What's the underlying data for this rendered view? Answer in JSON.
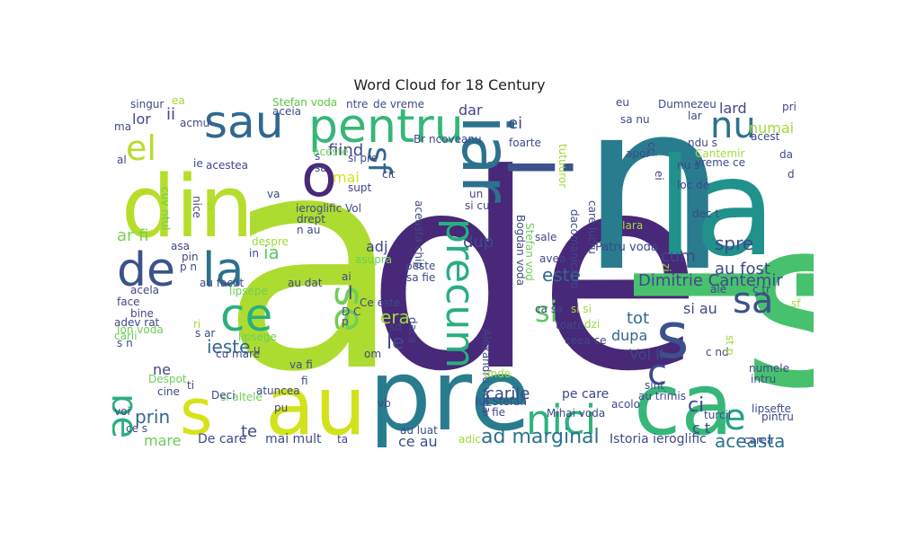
{
  "chart_data": {
    "type": "word_cloud",
    "title": "Word Cloud for 18 Century",
    "palette": [
      "#440154",
      "#46307e",
      "#355f8d",
      "#277f8e",
      "#21918c",
      "#2fb47c",
      "#5ec962",
      "#addc30",
      "#fde725"
    ],
    "words": [
      {
        "text": "de",
        "weight": 1.0,
        "color": "#482878"
      },
      {
        "text": "a",
        "weight": 0.92,
        "color": "#addc30"
      },
      {
        "text": "s",
        "weight": 0.78,
        "color": "#48c16e"
      },
      {
        "text": "i",
        "weight": 0.75,
        "color": "#48c16e"
      },
      {
        "text": "n",
        "weight": 0.7,
        "color": "#287c8e"
      },
      {
        "text": "la",
        "weight": 0.55,
        "color": "#21918c"
      },
      {
        "text": "pre",
        "weight": 0.4,
        "color": "#287c8e"
      },
      {
        "text": "au",
        "weight": 0.35,
        "color": "#d2e21b"
      },
      {
        "text": "ca",
        "weight": 0.35,
        "color": "#35b779"
      },
      {
        "text": "din",
        "weight": 0.3,
        "color": "#b5de2b"
      },
      {
        "text": "s",
        "weight": 0.32,
        "color": "#d8e219"
      },
      {
        "text": "s",
        "weight": 0.2,
        "color": "#3b528b"
      },
      {
        "text": "i",
        "weight": 0.25,
        "color": "#3b528b"
      },
      {
        "text": "pentru",
        "weight": 0.22,
        "color": "#35b779"
      },
      {
        "text": "sau",
        "weight": 0.21,
        "color": "#31688e"
      },
      {
        "text": "iar",
        "weight": 0.22,
        "color": "#2c728e"
      },
      {
        "text": "precum",
        "weight": 0.18,
        "color": "#29af7f"
      },
      {
        "text": "la",
        "weight": 0.2,
        "color": "#2c728e"
      },
      {
        "text": "de",
        "weight": 0.19,
        "color": "#3b528b"
      },
      {
        "text": "o",
        "weight": 0.22,
        "color": "#482878"
      },
      {
        "text": "ce",
        "weight": 0.18,
        "color": "#29af7f"
      },
      {
        "text": "sa",
        "weight": 0.16,
        "color": "#3b528b"
      },
      {
        "text": "nici",
        "weight": 0.16,
        "color": "#2fb47c"
      },
      {
        "text": "e",
        "weight": 0.15,
        "color": "#20a386"
      },
      {
        "text": "nu",
        "weight": 0.14,
        "color": "#2c728e"
      },
      {
        "text": "el",
        "weight": 0.13,
        "color": "#b5de2b"
      },
      {
        "text": "pe",
        "weight": 0.12,
        "color": "#29af7f"
      },
      {
        "text": "c",
        "weight": 0.12,
        "color": "#3e4989"
      },
      {
        "text": "se",
        "weight": 0.13,
        "color": "#6ece58"
      },
      {
        "text": "sf",
        "weight": 0.12,
        "color": "#31688e"
      },
      {
        "text": "si",
        "weight": 0.1,
        "color": "#5ec962"
      },
      {
        "text": "ad marginal",
        "weight": 0.08,
        "color": "#2c728e"
      },
      {
        "text": "aceasta",
        "weight": 0.08,
        "color": "#2c728e"
      },
      {
        "text": "au fost",
        "weight": 0.07,
        "color": "#3e4989"
      },
      {
        "text": "este",
        "weight": 0.07,
        "color": "#31688e"
      },
      {
        "text": "ieste",
        "weight": 0.07,
        "color": "#31688e"
      },
      {
        "text": "prin",
        "weight": 0.07,
        "color": "#31688e"
      },
      {
        "text": "era",
        "weight": 0.07,
        "color": "#a0da39"
      },
      {
        "text": "le",
        "weight": 0.07,
        "color": "#3e4989"
      },
      {
        "text": "ci",
        "weight": 0.07,
        "color": "#3e4989"
      },
      {
        "text": "ia",
        "weight": 0.06,
        "color": "#5ec962"
      },
      {
        "text": "spre",
        "weight": 0.06,
        "color": "#3e4989"
      },
      {
        "text": "fiind",
        "weight": 0.06,
        "color": "#3e4989"
      },
      {
        "text": "mai",
        "weight": 0.06,
        "color": "#d2e21b"
      },
      {
        "text": "ar fi",
        "weight": 0.06,
        "color": "#7ad151"
      },
      {
        "text": "dup",
        "weight": 0.05,
        "color": "#3e4989"
      },
      {
        "text": "cum",
        "weight": 0.05,
        "color": "#3e4989"
      },
      {
        "text": "Dimitrie Cantemir",
        "weight": 0.06,
        "color": "#3e4989"
      },
      {
        "text": "carile",
        "weight": 0.05,
        "color": "#3e4989"
      },
      {
        "text": "tot",
        "weight": 0.05,
        "color": "#31688e"
      },
      {
        "text": "dupa",
        "weight": 0.05,
        "color": "#31688e"
      },
      {
        "text": "mare",
        "weight": 0.05,
        "color": "#6ece58"
      },
      {
        "text": "te",
        "weight": 0.05,
        "color": "#3e4989"
      },
      {
        "text": "ne",
        "weight": 0.05,
        "color": "#3e4989"
      },
      {
        "text": "lor",
        "weight": 0.05,
        "color": "#3e4989"
      },
      {
        "text": "ii",
        "weight": 0.05,
        "color": "#3e4989"
      },
      {
        "text": "dar",
        "weight": 0.05,
        "color": "#3e4989"
      },
      {
        "text": "ei",
        "weight": 0.05,
        "color": "#3e4989"
      },
      {
        "text": "lard",
        "weight": 0.05,
        "color": "#3e4989"
      },
      {
        "text": "numai",
        "weight": 0.05,
        "color": "#a0da39"
      },
      {
        "text": "adj",
        "weight": 0.04,
        "color": "#3e4989"
      },
      {
        "text": "l",
        "weight": 0.04,
        "color": "#3e4989"
      },
      {
        "text": "ce au",
        "weight": 0.04,
        "color": "#3e4989"
      },
      {
        "text": "si au",
        "weight": 0.04,
        "color": "#3e4989"
      },
      {
        "text": "c t",
        "weight": 0.04,
        "color": "#3e4989"
      },
      {
        "text": "Vol II",
        "weight": 0.04,
        "color": "#3e4989"
      },
      {
        "text": "pe care",
        "weight": 0.03,
        "color": "#3e4989"
      },
      {
        "text": "Istoria ieroglific",
        "weight": 0.03,
        "color": "#3e4989"
      },
      {
        "text": "De care",
        "weight": 0.03,
        "color": "#3e4989"
      },
      {
        "text": "mai mult",
        "weight": 0.03,
        "color": "#3e4989"
      },
      {
        "text": "Stefan voda",
        "weight": 0.03,
        "color": "#6ece58"
      },
      {
        "text": "Patru voda",
        "weight": 0.03,
        "color": "#3e4989"
      },
      {
        "text": "Dumnezeu",
        "weight": 0.03,
        "color": "#3e4989"
      },
      {
        "text": "Cantemir",
        "weight": 0.03,
        "color": "#a0da39"
      },
      {
        "text": "acestea",
        "weight": 0.03,
        "color": "#3e4989"
      },
      {
        "text": "ieroglific Vol",
        "weight": 0.03,
        "color": "#3e4989"
      },
      {
        "text": "peste",
        "weight": 0.03,
        "color": "#3e4989"
      },
      {
        "text": "sa fie",
        "weight": 0.03,
        "color": "#3e4989"
      },
      {
        "text": "sale",
        "weight": 0.03,
        "color": "#3e4989"
      },
      {
        "text": "avea",
        "weight": 0.03,
        "color": "#3e4989"
      },
      {
        "text": "Ce este",
        "weight": 0.03,
        "color": "#3e4989"
      },
      {
        "text": "Alexandru voda",
        "weight": 0.03,
        "color": "#3e4989"
      },
      {
        "text": "Bogdan voda",
        "weight": 0.03,
        "color": "#3e4989"
      },
      {
        "text": "Stefan vod",
        "weight": 0.03,
        "color": "#6ece58"
      },
      {
        "text": "dacomanica ro",
        "weight": 0.03,
        "color": "#3e4989"
      },
      {
        "text": "care lucru",
        "weight": 0.03,
        "color": "#3e4989"
      },
      {
        "text": "foarte",
        "weight": 0.03,
        "color": "#3e4989"
      },
      {
        "text": "Br ncoveanu",
        "weight": 0.03,
        "color": "#3e4989"
      },
      {
        "text": "aceasta chip",
        "weight": 0.03,
        "color": "#3e4989"
      },
      {
        "text": "ntre",
        "weight": 0.03,
        "color": "#3e4989"
      },
      {
        "text": "de vreme",
        "weight": 0.03,
        "color": "#3e4989"
      },
      {
        "text": "Mihai voda",
        "weight": 0.03,
        "color": "#3e4989"
      },
      {
        "text": "lui Stefan",
        "weight": 0.03,
        "color": "#3e4989"
      },
      {
        "text": "au trimis",
        "weight": 0.03,
        "color": "#3e4989"
      },
      {
        "text": "toate",
        "weight": 0.03,
        "color": "#3e4989"
      },
      {
        "text": "ceea ce",
        "weight": 0.03,
        "color": "#3e4989"
      },
      {
        "text": "turcii",
        "weight": 0.03,
        "color": "#3e4989"
      },
      {
        "text": "acolo",
        "weight": 0.03,
        "color": "#3e4989"
      },
      {
        "text": "si altele",
        "weight": 0.03,
        "color": "#6ece58"
      },
      {
        "text": "atuncea",
        "weight": 0.03,
        "color": "#3e4989"
      },
      {
        "text": "lipsefte",
        "weight": 0.03,
        "color": "#3e4989"
      },
      {
        "text": "pintru",
        "weight": 0.03,
        "color": "#3e4989"
      },
      {
        "text": "numele",
        "weight": 0.03,
        "color": "#3e4989"
      },
      {
        "text": "intru",
        "weight": 0.03,
        "color": "#3e4989"
      },
      {
        "text": "sint",
        "weight": 0.03,
        "color": "#3e4989"
      },
      {
        "text": "carea",
        "weight": 0.03,
        "color": "#3e4989"
      },
      {
        "text": "vreme ce",
        "weight": 0.03,
        "color": "#3e4989"
      },
      {
        "text": "loc de",
        "weight": 0.03,
        "color": "#3e4989"
      },
      {
        "text": "dec t",
        "weight": 0.03,
        "color": "#3e4989"
      },
      {
        "text": "singur",
        "weight": 0.03,
        "color": "#3e4989"
      },
      {
        "text": "acest",
        "weight": 0.03,
        "color": "#3e4989"
      },
      {
        "text": "apoi",
        "weight": 0.03,
        "color": "#3e4989"
      },
      {
        "text": "Despot",
        "weight": 0.03,
        "color": "#6ece58"
      },
      {
        "text": "cine",
        "weight": 0.03,
        "color": "#3e4989"
      },
      {
        "text": "voi",
        "weight": 0.03,
        "color": "#3e4989"
      },
      {
        "text": "face",
        "weight": 0.03,
        "color": "#3e4989"
      },
      {
        "text": "acela",
        "weight": 0.03,
        "color": "#3e4989"
      },
      {
        "text": "bine",
        "weight": 0.03,
        "color": "#3e4989"
      },
      {
        "text": "adev rat",
        "weight": 0.03,
        "color": "#3e4989"
      },
      {
        "text": "carii",
        "weight": 0.03,
        "color": "#6ece58"
      },
      {
        "text": "Ion voda",
        "weight": 0.03,
        "color": "#6ece58"
      },
      {
        "text": "drept",
        "weight": 0.03,
        "color": "#3e4989"
      },
      {
        "text": "supt",
        "weight": 0.03,
        "color": "#3e4989"
      },
      {
        "text": "cit",
        "weight": 0.03,
        "color": "#3e4989"
      },
      {
        "text": "aceste",
        "weight": 0.03,
        "color": "#6ece58"
      },
      {
        "text": "si pre",
        "weight": 0.03,
        "color": "#3e4989"
      },
      {
        "text": "Stefan voda",
        "weight": 0.03,
        "color": "#6ece58"
      },
      {
        "text": "aceia",
        "weight": 0.03,
        "color": "#3e4989"
      },
      {
        "text": "lipsepe",
        "weight": 0.03,
        "color": "#6ece58"
      },
      {
        "text": "lipsege",
        "weight": 0.03,
        "color": "#6ece58"
      },
      {
        "text": "au facut",
        "weight": 0.03,
        "color": "#3e4989"
      },
      {
        "text": "cu mare",
        "weight": 0.03,
        "color": "#3e4989"
      },
      {
        "text": "asupra",
        "weight": 0.03,
        "color": "#6ece58"
      },
      {
        "text": "daca",
        "weight": 0.03,
        "color": "#3e4989"
      },
      {
        "text": "unde",
        "weight": 0.03,
        "color": "#a0da39"
      },
      {
        "text": "adic",
        "weight": 0.03,
        "color": "#a0da39"
      },
      {
        "text": "au luat",
        "weight": 0.03,
        "color": "#3e4989"
      },
      {
        "text": "s fie",
        "weight": 0.03,
        "color": "#3e4989"
      },
      {
        "text": "vb",
        "weight": 0.03,
        "color": "#3e4989"
      },
      {
        "text": "va fi",
        "weight": 0.03,
        "color": "#3e4989"
      },
      {
        "text": "Deci",
        "weight": 0.03,
        "color": "#3e4989"
      },
      {
        "text": "ta",
        "weight": 0.03,
        "color": "#3e4989"
      },
      {
        "text": "despre",
        "weight": 0.03,
        "color": "#a0da39"
      },
      {
        "text": "Iara",
        "weight": 0.03,
        "color": "#a0da39"
      },
      {
        "text": "ale",
        "weight": 0.03,
        "color": "#3e4989"
      },
      {
        "text": "c tr",
        "weight": 0.03,
        "color": "#3e4989"
      },
      {
        "text": "sf",
        "weight": 0.03,
        "color": "#a0da39"
      },
      {
        "text": "c nd",
        "weight": 0.03,
        "color": "#3e4989"
      },
      {
        "text": "ca sa",
        "weight": 0.03,
        "color": "#3e4989"
      },
      {
        "text": "si si",
        "weight": 0.03,
        "color": "#a0da39"
      },
      {
        "text": "dzi",
        "weight": 0.03,
        "color": "#a0da39"
      },
      {
        "text": "sa nu",
        "weight": 0.03,
        "color": "#3e4989"
      },
      {
        "text": "lar",
        "weight": 0.03,
        "color": "#3e4989"
      },
      {
        "text": "ndu s",
        "weight": 0.03,
        "color": "#3e4989"
      },
      {
        "text": "nu s",
        "weight": 0.03,
        "color": "#3e4989"
      },
      {
        "text": "da",
        "weight": 0.03,
        "color": "#3e4989"
      },
      {
        "text": "pri",
        "weight": 0.03,
        "color": "#3e4989"
      },
      {
        "text": "eu",
        "weight": 0.03,
        "color": "#3e4989"
      },
      {
        "text": "ma",
        "weight": 0.03,
        "color": "#3e4989"
      },
      {
        "text": "al",
        "weight": 0.03,
        "color": "#3e4989"
      },
      {
        "text": "ea",
        "weight": 0.03,
        "color": "#a0da39"
      },
      {
        "text": "acmu",
        "weight": 0.03,
        "color": "#3e4989"
      },
      {
        "text": "ie",
        "weight": 0.03,
        "color": "#3e4989"
      },
      {
        "text": "cuv ntul",
        "weight": 0.03,
        "color": "#6ece58"
      },
      {
        "text": "nice",
        "weight": 0.03,
        "color": "#3e4989"
      },
      {
        "text": "b",
        "weight": 0.03,
        "color": "#a0da39"
      },
      {
        "text": "va",
        "weight": 0.03,
        "color": "#3e4989"
      },
      {
        "text": "n au",
        "weight": 0.03,
        "color": "#3e4989"
      },
      {
        "text": "au dat",
        "weight": 0.03,
        "color": "#3e4989"
      },
      {
        "text": "in",
        "weight": 0.03,
        "color": "#3e4989"
      },
      {
        "text": "asa",
        "weight": 0.03,
        "color": "#3e4989"
      },
      {
        "text": "pin",
        "weight": 0.03,
        "color": "#3e4989"
      },
      {
        "text": "p n",
        "weight": 0.03,
        "color": "#3e4989"
      },
      {
        "text": "ai",
        "weight": 0.03,
        "color": "#3e4989"
      },
      {
        "text": "D C",
        "weight": 0.03,
        "color": "#3e4989"
      },
      {
        "text": "p",
        "weight": 0.03,
        "color": "#3e4989"
      },
      {
        "text": "sd",
        "weight": 0.03,
        "color": "#3e4989"
      },
      {
        "text": "om",
        "weight": 0.03,
        "color": "#3e4989"
      },
      {
        "text": "ri",
        "weight": 0.03,
        "color": "#a0da39"
      },
      {
        "text": "s ar",
        "weight": 0.03,
        "color": "#3e4989"
      },
      {
        "text": "s n",
        "weight": 0.03,
        "color": "#3e4989"
      },
      {
        "text": "u",
        "weight": 0.03,
        "color": "#3e4989"
      },
      {
        "text": "fi",
        "weight": 0.03,
        "color": "#3e4989"
      },
      {
        "text": "ti",
        "weight": 0.03,
        "color": "#3e4989"
      },
      {
        "text": "pu",
        "weight": 0.03,
        "color": "#3e4989"
      },
      {
        "text": "ce s",
        "weight": 0.03,
        "color": "#3e4989"
      },
      {
        "text": "s",
        "weight": 0.03,
        "color": "#3e4989"
      },
      {
        "text": "sa",
        "weight": 0.03,
        "color": "#3e4989"
      },
      {
        "text": "un",
        "weight": 0.03,
        "color": "#3e4989"
      },
      {
        "text": "si cu",
        "weight": 0.03,
        "color": "#3e4989"
      },
      {
        "text": "tutuuror",
        "weight": 0.03,
        "color": "#a0da39"
      },
      {
        "text": "zi",
        "weight": 0.03,
        "color": "#a0da39"
      },
      {
        "text": "st p",
        "weight": 0.03,
        "color": "#a0da39"
      },
      {
        "text": "d",
        "weight": 0.03,
        "color": "#3e4989"
      },
      {
        "text": "cci",
        "weight": 0.03,
        "color": "#3e4989"
      },
      {
        "text": "ei",
        "weight": 0.03,
        "color": "#3e4989"
      }
    ]
  }
}
